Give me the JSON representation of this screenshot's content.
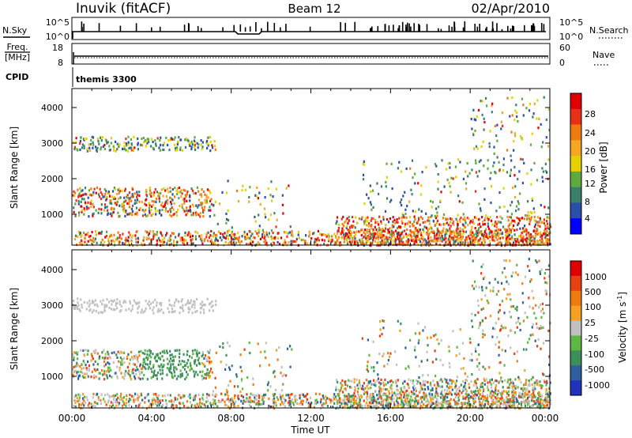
{
  "header": {
    "station": "Inuvik (fitACF)",
    "beam": "Beam 12",
    "date": "02/Apr/2010"
  },
  "chart_data": [
    {
      "type": "line",
      "panel": "N.Sky / N.Search",
      "left_label": "N.Sky",
      "right_label": "N.Search",
      "left_ticks": [
        "10^5",
        "10^0"
      ],
      "right_ticks": [
        "10^5",
        "10^0"
      ],
      "scale": "log",
      "x_range": [
        "00:00",
        "00:00"
      ]
    },
    {
      "type": "line",
      "panel": "Freq / Nave",
      "left_label_top": "Freq.",
      "left_label_unit": "[MHz]",
      "right_label": "Nave",
      "left_ticks": [
        "18",
        "8"
      ],
      "right_ticks": [
        "60",
        "0"
      ],
      "freq_approx_mhz": 11.5,
      "nave_approx": 36
    },
    {
      "type": "table",
      "panel": "CPID",
      "label": "CPID",
      "value": "themis 3300"
    },
    {
      "type": "heatmap",
      "panel": "Power",
      "ylabel": "Slant Range [km]",
      "y_ticks": [
        "4000",
        "3000",
        "2000",
        "1000"
      ],
      "ylim": [
        180,
        4500
      ],
      "colorbar_label": "Power [dB]",
      "colorbar_ticks": [
        "28",
        "24",
        "20",
        "16",
        "12",
        "8",
        "4"
      ],
      "colorbar_colors": [
        "#0000ff",
        "#2a4fa8",
        "#3a7f6a",
        "#5faa3c",
        "#e6d000",
        "#f5a623",
        "#f07a10",
        "#e83018",
        "#e00000"
      ],
      "colorbar_range": [
        0,
        32
      ]
    },
    {
      "type": "heatmap",
      "panel": "Velocity",
      "ylabel": "Slant Range [km]",
      "y_ticks": [
        "4000",
        "3000",
        "2000",
        "1000"
      ],
      "ylim": [
        180,
        4500
      ],
      "colorbar_label": "Velocity [m s",
      "colorbar_label_sup": "-1",
      "colorbar_label_end": "]",
      "colorbar_ticks": [
        "1000",
        "500",
        "100",
        "25",
        "-25",
        "-100",
        "-500",
        "-1000"
      ],
      "colorbar_colors": [
        "#2233bb",
        "#2f5fa0",
        "#3a8f5a",
        "#5cb840",
        "#c0c0c0",
        "#f5a020",
        "#f07a10",
        "#e84010",
        "#e00000"
      ],
      "xlabel": "Time UT",
      "x_ticks": [
        "00:00",
        "04:00",
        "08:00",
        "12:00",
        "16:00",
        "20:00",
        "00:00"
      ]
    }
  ]
}
